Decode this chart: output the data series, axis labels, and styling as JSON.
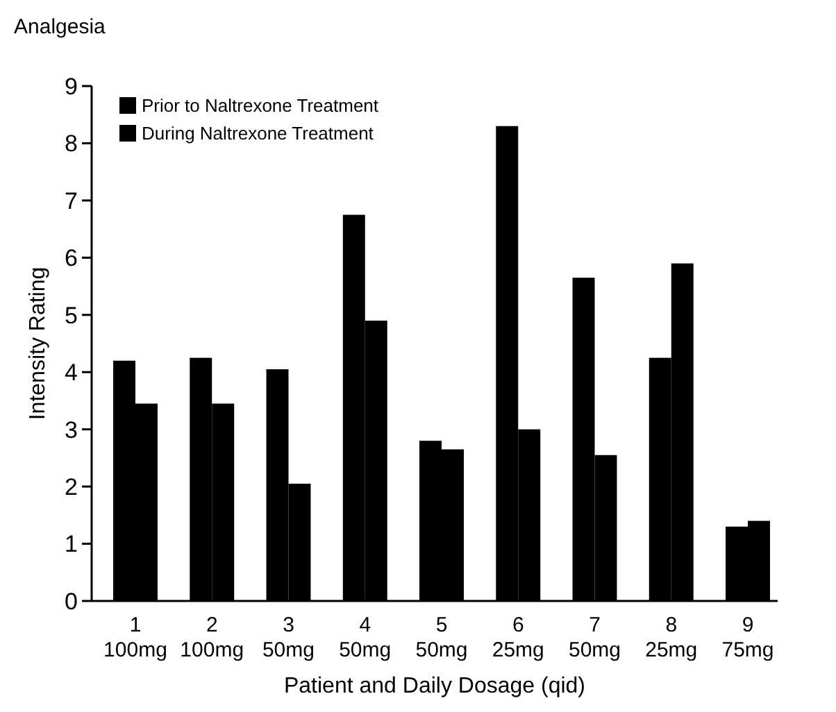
{
  "chart_data": {
    "type": "bar",
    "title": "Analgesia",
    "xlabel": "Patient and Daily Dosage (qid)",
    "ylabel": "Intensity Rating",
    "categories": [
      "1\n100mg",
      "2\n100mg",
      "3\n50mg",
      "4\n50mg",
      "5\n50mg",
      "6\n25mg",
      "7\n50mg",
      "8\n25mg",
      "9\n75mg"
    ],
    "series": [
      {
        "name": "Prior to Naltrexone Treatment",
        "color": "#000000",
        "values": [
          4.2,
          4.25,
          4.05,
          6.75,
          2.8,
          8.3,
          5.65,
          4.25,
          1.3
        ]
      },
      {
        "name": "During Naltrexone Treatment",
        "color": "#000000",
        "values": [
          3.45,
          3.45,
          2.05,
          4.9,
          2.65,
          3.0,
          2.55,
          5.9,
          1.4
        ]
      }
    ],
    "ylim": [
      0,
      9
    ],
    "yticks": [
      0,
      1,
      2,
      3,
      4,
      5,
      6,
      7,
      8,
      9
    ],
    "grid": false,
    "legend": "top left"
  }
}
